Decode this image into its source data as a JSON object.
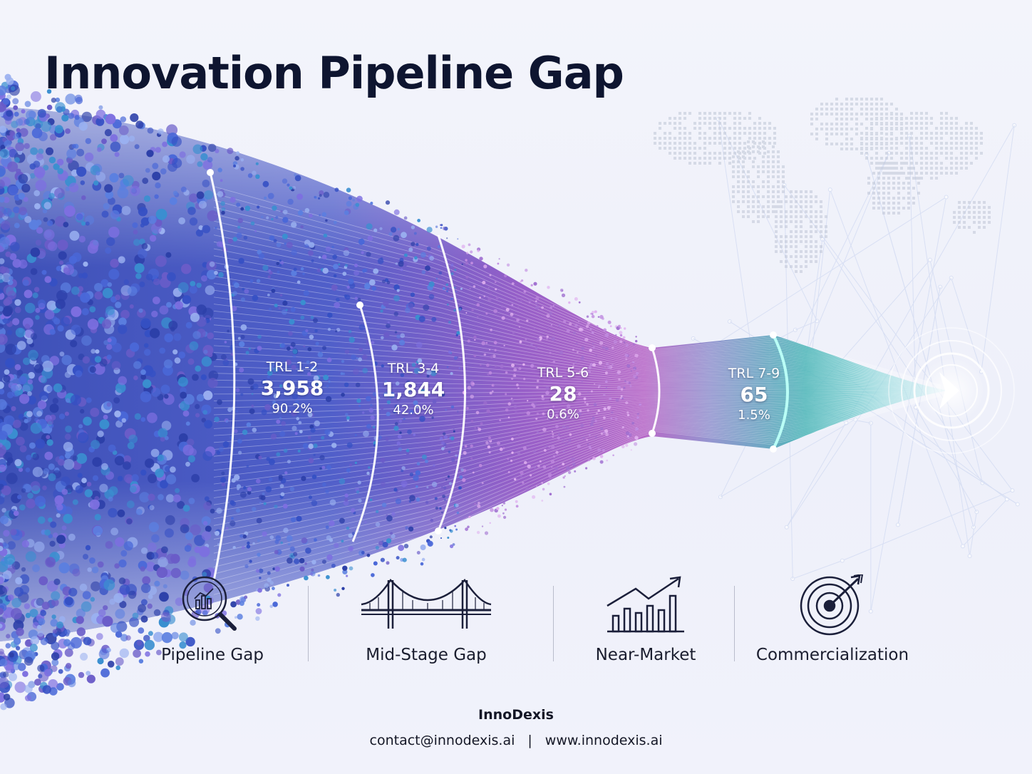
{
  "title": "Innovation Pipeline Gap",
  "stages": [
    {
      "trl": "TRL 1-2",
      "count": "3,958",
      "percent": "90.2%",
      "color": "#3d4fc7"
    },
    {
      "trl": "TRL 3-4",
      "count": "1,844",
      "percent": "42.0%",
      "color": "#4a4ab8"
    },
    {
      "trl": "TRL 5-6",
      "count": "28",
      "percent": "0.6%",
      "color": "#8a4fc0"
    },
    {
      "trl": "TRL 7-9",
      "count": "65",
      "percent": "1.5%",
      "color": "#2aa3a8"
    }
  ],
  "categories": [
    {
      "label": "Pipeline Gap",
      "icon": "magnifier-chart-icon"
    },
    {
      "label": "Mid-Stage Gap",
      "icon": "bridge-icon"
    },
    {
      "label": "Near-Market",
      "icon": "growth-chart-icon"
    },
    {
      "label": "Commercialization",
      "icon": "target-icon"
    }
  ],
  "footer": {
    "brand": "InnoDexis",
    "email": "contact@innodexis.ai",
    "separator": "|",
    "website": "www.innodexis.ai"
  },
  "colors": {
    "title": "#0e1530",
    "funnel_blue": "#2f57c9",
    "funnel_purple": "#a24fc4",
    "funnel_teal": "#2ab3b0"
  }
}
